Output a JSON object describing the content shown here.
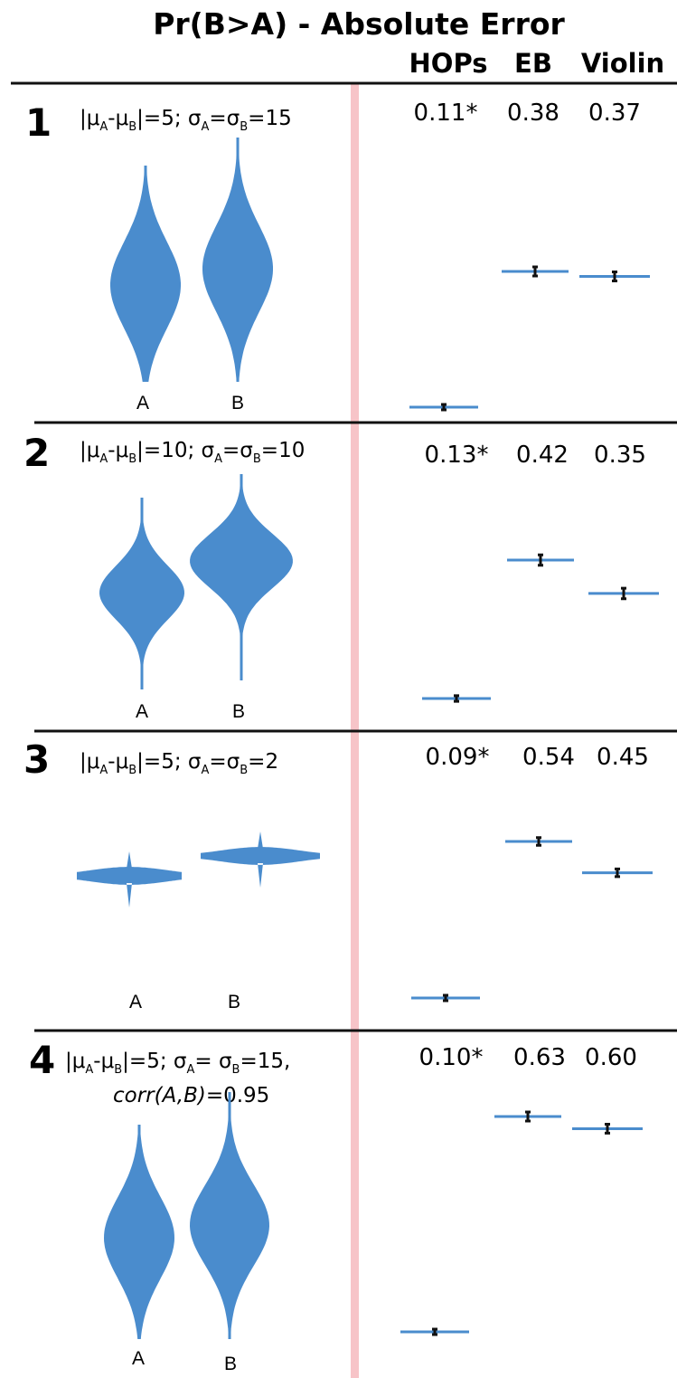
{
  "chart_data": {
    "type": "scatter",
    "title": "Pr(B>A) - Absolute Error",
    "columns": [
      "HOPs",
      "EB",
      "Violin"
    ],
    "colors": {
      "violin": "#4a8ccd",
      "mark": "#4a8ccd",
      "errorbar": "#111111",
      "divider": "#f7c4c8",
      "rule": "#111111"
    },
    "panels": [
      {
        "number": "1",
        "condition": {
          "mu_diff": "5",
          "sigma": "15",
          "corr_prefix": "",
          "corr_value": ""
        },
        "violin_labels": [
          "A",
          "B"
        ],
        "violin_scale": {
          "A_mean": 0,
          "A_sd": 1,
          "B_mean": 0.33,
          "B_sd": 1
        },
        "errors": [
          "0.11*",
          "0.38",
          "0.37"
        ],
        "values": [
          0.11,
          0.38,
          0.37
        ],
        "ci_halfwidth": [
          0.003,
          0.009,
          0.009
        ]
      },
      {
        "number": "2",
        "condition": {
          "mu_diff": "10",
          "sigma": "10",
          "corr_prefix": "",
          "corr_value": ""
        },
        "violin_labels": [
          "A",
          "B"
        ],
        "violin_scale": {
          "A_mean": 0,
          "A_sd": 1,
          "B_mean": 1,
          "B_sd": 1
        },
        "errors": [
          "0.13*",
          "0.42",
          "0.35"
        ],
        "values": [
          0.13,
          0.42,
          0.35
        ],
        "ci_halfwidth": [
          0.006,
          0.011,
          0.011
        ]
      },
      {
        "number": "3",
        "condition": {
          "mu_diff": "5",
          "sigma": "2",
          "corr_prefix": "",
          "corr_value": ""
        },
        "violin_labels": [
          "A",
          "B"
        ],
        "violin_scale": {
          "A_mean": 0,
          "A_sd": 1,
          "B_mean": 2.5,
          "B_sd": 1
        },
        "errors": [
          "0.09*",
          "0.54",
          "0.45"
        ],
        "values": [
          0.09,
          0.54,
          0.45
        ],
        "ci_halfwidth": [
          0.007,
          0.011,
          0.011
        ]
      },
      {
        "number": "4",
        "condition": {
          "mu_diff": "5",
          "sigma": "15",
          "corr_prefix": "corr(A,B)",
          "corr_value": "=0.95"
        },
        "violin_labels": [
          "A",
          "B"
        ],
        "violin_scale": {
          "A_mean": 0,
          "A_sd": 1,
          "B_mean": 0.33,
          "B_sd": 1
        },
        "errors": [
          "0.10*",
          "0.63",
          "0.60"
        ],
        "values": [
          0.1,
          0.63,
          0.6
        ],
        "ci_halfwidth": [
          0.005,
          0.011,
          0.011
        ]
      }
    ]
  }
}
